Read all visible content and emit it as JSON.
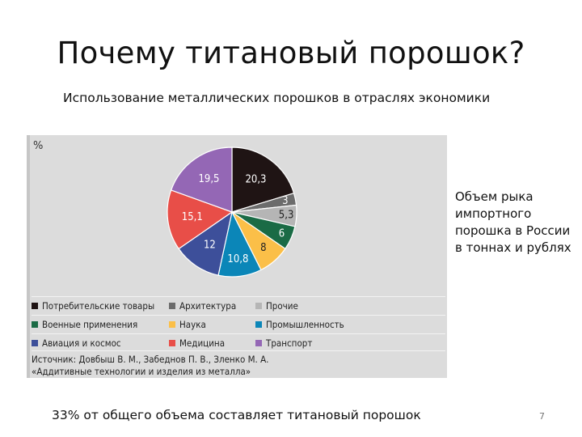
{
  "title": "Почему титановый порошок?",
  "subtitle": "Использование металлических порошков в отраслях экономики",
  "side_note": "Объем рыка импортного порошка в России в тоннах и рублях",
  "footnote": "33% от общего объема составляет титановый порошок",
  "page_number": "7",
  "source_lines": [
    "Источник: Довбыш В. М., Забеднов П. В., Зленко М. А.",
    "«Аддитивные технологии и изделия из металла»"
  ],
  "chart_data": {
    "type": "pie",
    "unit_label": "%",
    "slices": [
      {
        "label": "Потребительские товары",
        "value": 20.3,
        "value_label": "20,3",
        "color": "#1f1414"
      },
      {
        "label": "Архитектура",
        "value": 3,
        "value_label": "3",
        "color": "#6c6c6c"
      },
      {
        "label": "Прочие",
        "value": 5.3,
        "value_label": "5,3",
        "color": "#b5b5b5"
      },
      {
        "label": "Военные применения",
        "value": 6,
        "value_label": "6",
        "color": "#1a6b45"
      },
      {
        "label": "Наука",
        "value": 8,
        "value_label": "8",
        "color": "#fbbf48"
      },
      {
        "label": "Промышленность",
        "value": 10.8,
        "value_label": "10,8",
        "color": "#0b86b8"
      },
      {
        "label": "Авиация и космос",
        "value": 12,
        "value_label": "12",
        "color": "#3d4f9a"
      },
      {
        "label": "Медицина",
        "value": 15.1,
        "value_label": "15,1",
        "color": "#e84e48"
      },
      {
        "label": "Транспорт",
        "value": 19.5,
        "value_label": "19,5",
        "color": "#9467b5"
      }
    ],
    "legend_order": [
      0,
      1,
      2,
      3,
      4,
      5,
      6,
      7,
      8
    ]
  }
}
